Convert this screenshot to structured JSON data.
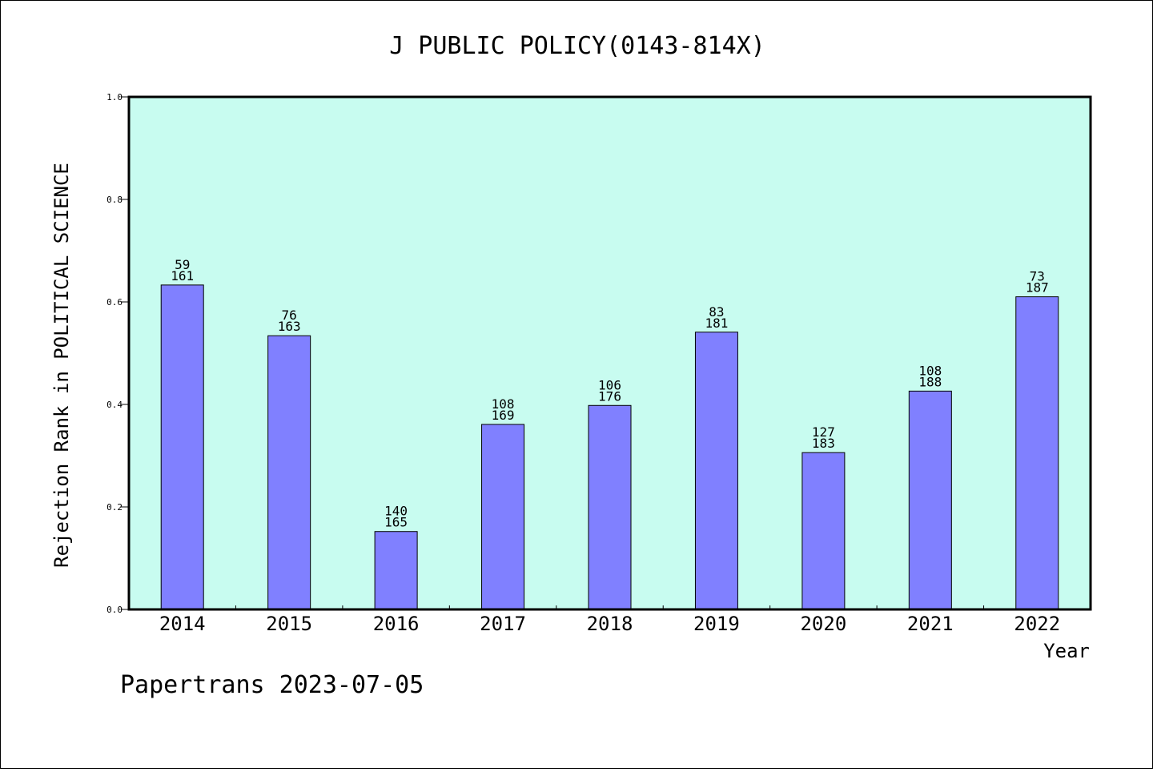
{
  "chart_data": {
    "type": "bar",
    "title": "J PUBLIC POLICY(0143-814X)",
    "xlabel": "Year",
    "ylabel": "Rejection Rank in POLITICAL SCIENCE",
    "ylim": [
      0,
      1.0
    ],
    "yticks": [
      "0.0",
      "0.2",
      "0.4",
      "0.6",
      "0.8",
      "1.0"
    ],
    "categories": [
      "2014",
      "2015",
      "2016",
      "2017",
      "2018",
      "2019",
      "2020",
      "2021",
      "2022"
    ],
    "values": [
      0.633,
      0.534,
      0.152,
      0.361,
      0.398,
      0.541,
      0.306,
      0.426,
      0.61
    ],
    "labels_top": [
      "59",
      "76",
      "140",
      "108",
      "106",
      "83",
      "127",
      "108",
      "73"
    ],
    "labels_bottom": [
      "161",
      "163",
      "165",
      "169",
      "176",
      "181",
      "183",
      "188",
      "187"
    ],
    "bar_color": "#8080ff",
    "plot_background": "#c8fcf0",
    "grid": false
  },
  "footer": {
    "text": "Papertrans 2023-07-05"
  }
}
